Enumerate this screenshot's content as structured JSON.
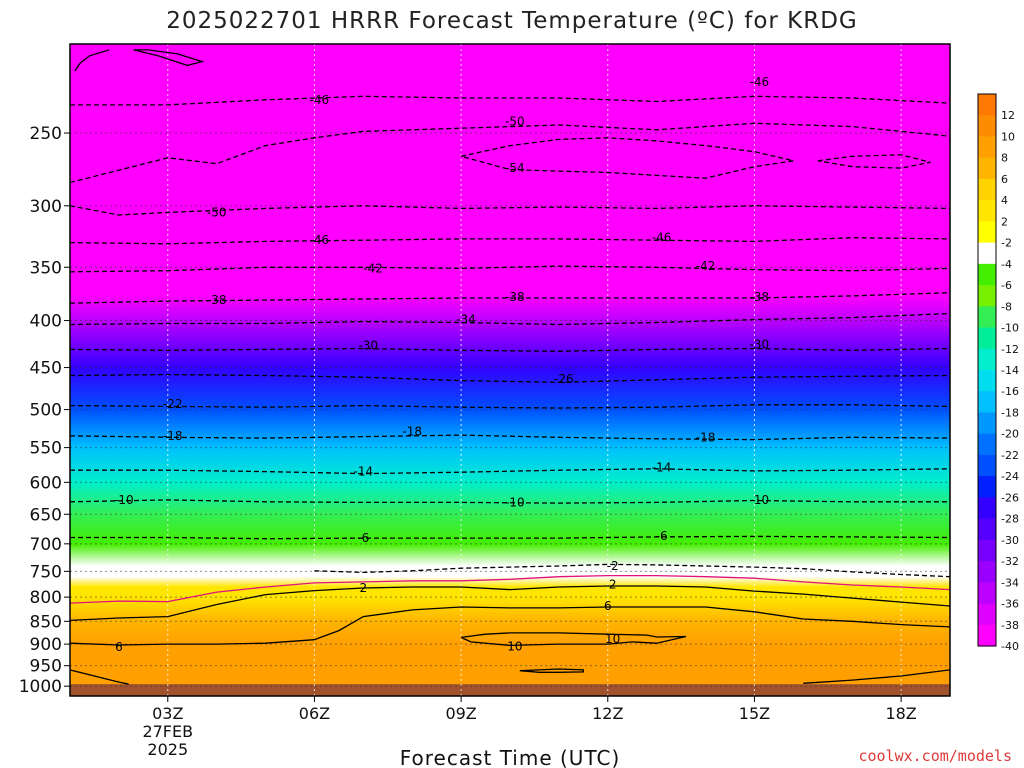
{
  "page": {
    "title": "2025022701 HRRR Forecast Temperature (ºC) for KRDG",
    "credit": "coolwx.com/models"
  },
  "chart_data": {
    "type": "heatmap",
    "title": "2025022701 HRRR Forecast Temperature (ºC) for KRDG",
    "xlabel": "Forecast Time (UTC)",
    "ylabel": "",
    "x_unit": "forecast hour",
    "xlim": [
      1,
      19
    ],
    "x_ticks": [
      {
        "hour": 3,
        "label": "03Z",
        "sub1": "27FEB",
        "sub2": "2025"
      },
      {
        "hour": 6,
        "label": "06Z",
        "sub1": "",
        "sub2": ""
      },
      {
        "hour": 9,
        "label": "09Z",
        "sub1": "",
        "sub2": ""
      },
      {
        "hour": 12,
        "label": "12Z",
        "sub1": "",
        "sub2": ""
      },
      {
        "hour": 15,
        "label": "15Z",
        "sub1": "",
        "sub2": ""
      },
      {
        "hour": 18,
        "label": "18Z",
        "sub1": "",
        "sub2": ""
      }
    ],
    "y_unit": "hPa",
    "y_scale": "log-pressure (inverted)",
    "ylim": [
      1025,
      200
    ],
    "y_ticks": [
      250,
      300,
      350,
      400,
      450,
      500,
      550,
      600,
      650,
      700,
      750,
      800,
      850,
      900,
      950,
      1000
    ],
    "y_tick_labels": [
      "250",
      "300",
      "350",
      "400",
      "450",
      "500",
      "550",
      "600",
      "650",
      "700",
      "750",
      "800",
      "850",
      "900",
      "950",
      "1000"
    ],
    "surface_pressure_hpa": 995,
    "surface_color": "#a0522d",
    "grid": "dotted at x and y ticks",
    "colorbar": {
      "position": "right",
      "labels": [
        "12",
        "10",
        "8",
        "6",
        "4",
        "2",
        "-2",
        "-4",
        "-6",
        "-8",
        "-10",
        "-12",
        "-14",
        "-16",
        "-18",
        "-20",
        "-22",
        "-24",
        "-26",
        "-28",
        "-30",
        "-32",
        "-34",
        "-36",
        "-38",
        "-40"
      ],
      "colors": [
        "#ff7800",
        "#ff8c00",
        "#ffa000",
        "#ffb400",
        "#ffd200",
        "#ffe600",
        "#ffff00",
        "#ffffff",
        "#44ee00",
        "#77f000",
        "#33ee55",
        "#00ee99",
        "#00eecc",
        "#00ddee",
        "#00c0ff",
        "#0098ff",
        "#0072ff",
        "#0050ff",
        "#0020ff",
        "#3300ff",
        "#5500ff",
        "#7700ff",
        "#9900ff",
        "#bb00ff",
        "#dd00ff",
        "#ff00ff"
      ]
    },
    "fill_profile": [
      {
        "p": 200,
        "t": -50
      },
      {
        "p": 250,
        "t": -50
      },
      {
        "p": 300,
        "t": -48
      },
      {
        "p": 350,
        "t": -42
      },
      {
        "p": 375,
        "t": -39
      },
      {
        "p": 400,
        "t": -35
      },
      {
        "p": 450,
        "t": -28
      },
      {
        "p": 500,
        "t": -23
      },
      {
        "p": 550,
        "t": -18
      },
      {
        "p": 600,
        "t": -14
      },
      {
        "p": 650,
        "t": -10
      },
      {
        "p": 700,
        "t": -6
      },
      {
        "p": 740,
        "t": -3
      },
      {
        "p": 760,
        "t": 0
      },
      {
        "p": 780,
        "t": 2
      },
      {
        "p": 800,
        "t": 3
      },
      {
        "p": 850,
        "t": 6
      },
      {
        "p": 900,
        "t": 9
      },
      {
        "p": 950,
        "t": 9
      },
      {
        "p": 1000,
        "t": 9
      }
    ],
    "contours": [
      {
        "level": "-46",
        "dashed": true,
        "color": "#000",
        "x": [
          1,
          3,
          5,
          7,
          9,
          11,
          13,
          15,
          17,
          19
        ],
        "p": [
          233,
          233,
          230,
          228,
          229,
          229,
          231,
          228,
          229,
          232
        ]
      },
      {
        "level": "-50",
        "dashed": true,
        "color": "#000",
        "x": [
          1,
          3,
          4,
          5,
          6,
          7,
          9,
          11,
          13,
          15,
          17,
          19
        ],
        "p": [
          283,
          266,
          270,
          258,
          253,
          249,
          247,
          245,
          248,
          244,
          246,
          252
        ]
      },
      {
        "level": "-54",
        "dashed": true,
        "color": "#000",
        "x": [
          9,
          10,
          11,
          12,
          13,
          14,
          15,
          15.8,
          15,
          14,
          13,
          12,
          11,
          10,
          9
        ],
        "p": [
          265,
          258,
          254,
          253,
          255,
          258,
          262,
          268,
          272,
          280,
          278,
          276,
          275,
          274,
          265
        ]
      },
      {
        "level": "-54",
        "dashed": true,
        "color": "#000",
        "x": [
          16.3,
          17,
          18,
          18.6,
          18,
          17,
          16.3
        ],
        "p": [
          268,
          265,
          264,
          269,
          273,
          272,
          268
        ]
      },
      {
        "level": "-50",
        "dashed": true,
        "color": "#000",
        "x": [
          1,
          2,
          3,
          5,
          7,
          9,
          11,
          13,
          15,
          17,
          19
        ],
        "p": [
          300,
          307,
          305,
          302,
          300,
          302,
          301,
          302,
          300,
          301,
          302
        ]
      },
      {
        "level": "-46",
        "dashed": true,
        "color": "#000",
        "x": [
          1,
          3,
          5,
          7,
          9,
          11,
          13,
          15,
          17,
          19
        ],
        "p": [
          329,
          330,
          328,
          327,
          326,
          326,
          327,
          328,
          325,
          326
        ]
      },
      {
        "level": "-42",
        "dashed": true,
        "color": "#000",
        "x": [
          1,
          3,
          5,
          7,
          9,
          11,
          13,
          15,
          17,
          19
        ],
        "p": [
          354,
          353,
          350,
          350,
          351,
          349,
          350,
          352,
          353,
          351
        ]
      },
      {
        "level": "-38",
        "dashed": true,
        "color": "#000",
        "x": [
          1,
          3,
          5,
          7,
          9,
          11,
          13,
          15,
          17,
          19
        ],
        "p": [
          383,
          381,
          380,
          379,
          378,
          378,
          378,
          378,
          376,
          373
        ]
      },
      {
        "level": "-34",
        "dashed": true,
        "color": "#000",
        "x": [
          1,
          3,
          5,
          7,
          9,
          11,
          13,
          15,
          17,
          19
        ],
        "p": [
          404,
          403,
          403,
          401,
          402,
          404,
          402,
          399,
          397,
          393
        ]
      },
      {
        "level": "-30",
        "dashed": true,
        "color": "#000",
        "x": [
          1,
          3,
          5,
          7,
          9,
          11,
          13,
          15,
          17,
          19
        ],
        "p": [
          430,
          431,
          430,
          429,
          431,
          432,
          430,
          429,
          431,
          429
        ]
      },
      {
        "level": "-26",
        "dashed": true,
        "color": "#000",
        "x": [
          1,
          3,
          5,
          7,
          9,
          11,
          13,
          15,
          17,
          19
        ],
        "p": [
          459,
          458,
          459,
          461,
          465,
          467,
          464,
          461,
          460,
          459
        ]
      },
      {
        "level": "-22",
        "dashed": true,
        "color": "#000",
        "x": [
          1,
          3,
          5,
          7,
          9,
          11,
          13,
          15,
          17,
          19
        ],
        "p": [
          495,
          496,
          497,
          495,
          497,
          498,
          497,
          494,
          494,
          496
        ]
      },
      {
        "level": "-18",
        "dashed": true,
        "color": "#000",
        "x": [
          1,
          3,
          5,
          7,
          9,
          11,
          13,
          15,
          17,
          19
        ],
        "p": [
          534,
          536,
          537,
          535,
          533,
          536,
          538,
          539,
          536,
          537
        ]
      },
      {
        "level": "-14",
        "dashed": true,
        "color": "#000",
        "x": [
          1,
          3,
          5,
          7,
          9,
          11,
          13,
          15,
          17,
          19
        ],
        "p": [
          582,
          582,
          584,
          587,
          585,
          582,
          580,
          583,
          582,
          580
        ]
      },
      {
        "level": "-10",
        "dashed": true,
        "color": "#000",
        "x": [
          1,
          3,
          5,
          7,
          9,
          11,
          13,
          15,
          17,
          19
        ],
        "p": [
          630,
          627,
          630,
          631,
          631,
          632,
          631,
          628,
          630,
          630
        ]
      },
      {
        "level": "-6",
        "dashed": true,
        "color": "#000",
        "x": [
          1,
          3,
          5,
          7,
          9,
          11,
          13,
          15,
          17,
          19
        ],
        "p": [
          689,
          689,
          691,
          690,
          690,
          690,
          688,
          687,
          688,
          689
        ]
      },
      {
        "level": "-2",
        "dashed": true,
        "color": "#000",
        "x": [
          6,
          7,
          8,
          9,
          10,
          11,
          12,
          13,
          14,
          15,
          16,
          17,
          18,
          19
        ],
        "p": [
          749,
          752,
          749,
          744,
          742,
          740,
          737,
          738,
          740,
          742,
          745,
          751,
          756,
          760
        ]
      },
      {
        "level": "0",
        "dashed": false,
        "color": "#e0137e",
        "x": [
          1,
          2,
          3,
          4,
          5,
          6,
          7,
          8,
          9,
          10,
          11,
          12,
          13,
          14,
          15,
          16,
          17,
          18,
          19
        ],
        "p": [
          812,
          808,
          809,
          790,
          780,
          772,
          770,
          768,
          768,
          765,
          760,
          758,
          758,
          760,
          763,
          770,
          776,
          780,
          785
        ]
      },
      {
        "level": "2",
        "dashed": false,
        "color": "#000",
        "x": [
          1,
          2,
          3,
          4,
          5,
          6,
          7,
          8,
          9,
          10,
          11,
          12,
          13,
          14,
          15,
          16,
          17,
          18,
          19
        ],
        "p": [
          848,
          843,
          840,
          815,
          795,
          787,
          782,
          780,
          780,
          785,
          780,
          778,
          778,
          780,
          788,
          794,
          802,
          810,
          818
        ]
      },
      {
        "level": "6",
        "dashed": false,
        "color": "#000",
        "x": [
          1,
          2,
          3,
          4,
          5,
          6,
          6.5,
          7,
          8,
          9,
          10,
          11,
          12,
          13,
          14,
          15,
          16,
          17,
          18,
          19
        ],
        "p": [
          898,
          902,
          900,
          900,
          898,
          890,
          870,
          840,
          826,
          820,
          822,
          822,
          820,
          820,
          820,
          830,
          845,
          850,
          857,
          862
        ]
      },
      {
        "level": "10",
        "dashed": false,
        "color": "#000",
        "x": [
          9,
          9.5,
          10,
          11,
          12,
          12.8,
          13,
          13.6,
          13,
          12.5,
          12,
          11,
          10,
          9.2,
          9
        ],
        "p": [
          885,
          878,
          875,
          875,
          878,
          880,
          884,
          883,
          898,
          895,
          900,
          900,
          903,
          895,
          885
        ]
      },
      {
        "level": "10",
        "dashed": false,
        "color": "#000",
        "x": [
          10.2,
          10.6,
          11,
          11.5,
          11.5,
          11,
          10.6,
          10.2
        ],
        "p": [
          962,
          960,
          958,
          960,
          965,
          966,
          966,
          962
        ]
      },
      {
        "level": "10",
        "dashed": false,
        "color": "#000",
        "x": [
          1,
          1.5,
          2,
          2.2
        ],
        "p": [
          960,
          975,
          990,
          995
        ]
      },
      {
        "level": "10",
        "dashed": false,
        "color": "#000",
        "x": [
          16,
          17,
          18,
          19
        ],
        "p": [
          993,
          985,
          975,
          960
        ]
      },
      {
        "level": "-50",
        "dashed": false,
        "color": "#000",
        "x": [
          1.1,
          1.2,
          1.4,
          1.8
        ],
        "p": [
          214,
          210,
          206,
          203
        ]
      },
      {
        "level": "-50",
        "dashed": false,
        "color": "#000",
        "x": [
          2.3,
          2.8,
          3.4,
          3.7,
          3.2,
          2.6,
          2.3
        ],
        "p": [
          203,
          206,
          211,
          209,
          205,
          203,
          203
        ]
      }
    ],
    "contour_labels": [
      {
        "text": "-46",
        "x": 6.1,
        "p": 230
      },
      {
        "text": "-46",
        "x": 15.1,
        "p": 220
      },
      {
        "text": "-50",
        "x": 10.1,
        "p": 243
      },
      {
        "text": "-54",
        "x": 10.1,
        "p": 273
      },
      {
        "text": "-50",
        "x": 4.0,
        "p": 305
      },
      {
        "text": "-46",
        "x": 6.1,
        "p": 327
      },
      {
        "text": "-46",
        "x": 13.1,
        "p": 325
      },
      {
        "text": "-42",
        "x": 7.2,
        "p": 351
      },
      {
        "text": "-42",
        "x": 14.0,
        "p": 349
      },
      {
        "text": "-38",
        "x": 4.0,
        "p": 380
      },
      {
        "text": "-38",
        "x": 10.1,
        "p": 377
      },
      {
        "text": "-38",
        "x": 15.1,
        "p": 377
      },
      {
        "text": "-34",
        "x": 9.1,
        "p": 399
      },
      {
        "text": "-30",
        "x": 7.1,
        "p": 426
      },
      {
        "text": "-30",
        "x": 15.1,
        "p": 425
      },
      {
        "text": "-26",
        "x": 11.1,
        "p": 463
      },
      {
        "text": "-22",
        "x": 3.1,
        "p": 493
      },
      {
        "text": "-18",
        "x": 3.1,
        "p": 534
      },
      {
        "text": "-18",
        "x": 8.0,
        "p": 528
      },
      {
        "text": "-18",
        "x": 14.0,
        "p": 536
      },
      {
        "text": "-14",
        "x": 7.0,
        "p": 584
      },
      {
        "text": "-14",
        "x": 13.1,
        "p": 578
      },
      {
        "text": "-10",
        "x": 2.1,
        "p": 627
      },
      {
        "text": "-10",
        "x": 10.1,
        "p": 631
      },
      {
        "text": "-10",
        "x": 15.1,
        "p": 627
      },
      {
        "text": "-6",
        "x": 7.0,
        "p": 690
      },
      {
        "text": "-6",
        "x": 13.1,
        "p": 686
      },
      {
        "text": "-6",
        "x": 19.1,
        "p": 688
      },
      {
        "text": "-2",
        "x": 12.1,
        "p": 740
      },
      {
        "text": "2",
        "x": 7.0,
        "p": 782
      },
      {
        "text": "2",
        "x": 12.1,
        "p": 775
      },
      {
        "text": "6",
        "x": 2.0,
        "p": 906
      },
      {
        "text": "6",
        "x": 12.0,
        "p": 818
      },
      {
        "text": "10",
        "x": 10.1,
        "p": 905
      },
      {
        "text": "10",
        "x": 12.1,
        "p": 888
      }
    ]
  }
}
